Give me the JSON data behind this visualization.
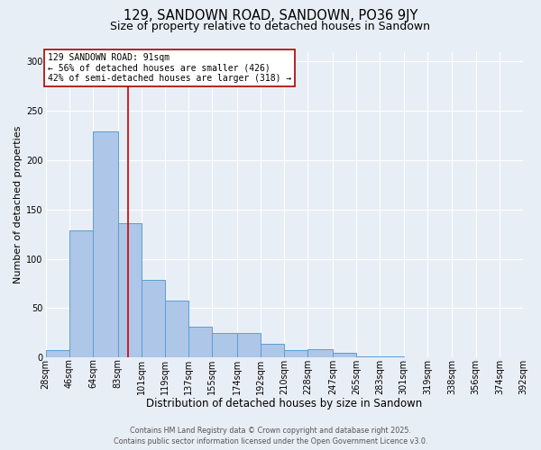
{
  "title": "129, SANDOWN ROAD, SANDOWN, PO36 9JY",
  "subtitle": "Size of property relative to detached houses in Sandown",
  "xlabel": "Distribution of detached houses by size in Sandown",
  "ylabel": "Number of detached properties",
  "bar_values": [
    7,
    129,
    229,
    136,
    79,
    58,
    31,
    25,
    25,
    14,
    7,
    8,
    5,
    1,
    1,
    0,
    0,
    0,
    0,
    0
  ],
  "bin_edges": [
    28,
    46,
    64,
    83,
    101,
    119,
    137,
    155,
    174,
    192,
    210,
    228,
    247,
    265,
    283,
    301,
    319,
    338,
    356,
    374,
    392
  ],
  "tick_labels": [
    "28sqm",
    "46sqm",
    "64sqm",
    "83sqm",
    "101sqm",
    "119sqm",
    "137sqm",
    "155sqm",
    "174sqm",
    "192sqm",
    "210sqm",
    "228sqm",
    "247sqm",
    "265sqm",
    "283sqm",
    "301sqm",
    "319sqm",
    "338sqm",
    "356sqm",
    "374sqm",
    "392sqm"
  ],
  "bar_color": "#aec6e8",
  "bar_edge_color": "#5a9fd4",
  "bar_linewidth": 0.7,
  "vline_x": 91,
  "vline_color": "#cc0000",
  "vline_linewidth": 1.2,
  "annotation_text": "129 SANDOWN ROAD: 91sqm\n← 56% of detached houses are smaller (426)\n42% of semi-detached houses are larger (318) →",
  "annotation_box_facecolor": "#ffffff",
  "annotation_box_edgecolor": "#aa0000",
  "annotation_fontsize": 7.0,
  "ylim": [
    0,
    310
  ],
  "yticks": [
    0,
    50,
    100,
    150,
    200,
    250,
    300
  ],
  "background_color": "#e8eef5",
  "grid_color": "#ffffff",
  "footer_line1": "Contains HM Land Registry data © Crown copyright and database right 2025.",
  "footer_line2": "Contains public sector information licensed under the Open Government Licence v3.0.",
  "title_fontsize": 10.5,
  "subtitle_fontsize": 9.0,
  "xlabel_fontsize": 8.5,
  "ylabel_fontsize": 8.0,
  "tick_fontsize": 7.0,
  "footer_fontsize": 5.8
}
